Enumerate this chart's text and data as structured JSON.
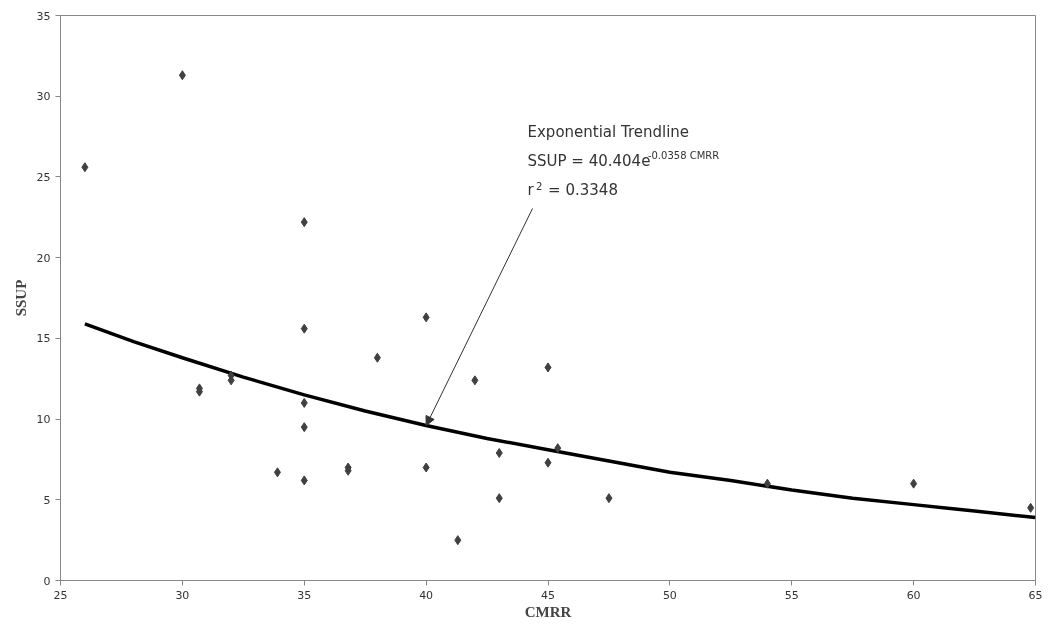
{
  "chart_data": {
    "type": "scatter",
    "xlabel": "CMRR",
    "ylabel": "SSUP",
    "xlim": [
      25,
      65
    ],
    "ylim": [
      0,
      35
    ],
    "xticks": [
      25,
      30,
      35,
      40,
      45,
      50,
      55,
      60,
      65
    ],
    "yticks": [
      0,
      5,
      10,
      15,
      20,
      25,
      30,
      35
    ],
    "grid": false,
    "marker": "diamond",
    "series": [
      {
        "color": "#404040",
        "x": [
          26,
          30,
          30.7,
          30.7,
          32,
          32,
          33.9,
          35,
          35,
          35,
          35,
          35,
          36.8,
          36.8,
          38,
          40,
          40,
          41.3,
          42,
          43,
          43,
          45,
          45,
          45.4,
          47.5,
          54,
          60,
          64.8
        ],
        "values": [
          25.6,
          31.3,
          11.9,
          11.7,
          12.7,
          12.4,
          6.7,
          22.2,
          15.6,
          11.0,
          9.5,
          6.2,
          7.0,
          6.8,
          13.8,
          16.3,
          7.0,
          2.5,
          12.4,
          7.9,
          5.1,
          13.2,
          7.3,
          8.2,
          5.1,
          6.0,
          6.0,
          4.5
        ]
      },
      {
        "type": "line",
        "color": "#000000",
        "marker": "none",
        "x": [
          26,
          28,
          30,
          32.5,
          35,
          37.5,
          40,
          42.5,
          45,
          47.5,
          50,
          52.5,
          55,
          57.5,
          60,
          62.5,
          65
        ],
        "values": [
          15.9,
          14.8,
          13.8,
          12.6,
          11.5,
          10.5,
          9.6,
          8.8,
          8.1,
          7.4,
          6.7,
          6.2,
          5.6,
          5.1,
          4.7,
          4.3,
          3.9
        ]
      }
    ],
    "annotations": [
      "Exponential Trendline",
      "SSUP = 40.404e$^{-0.0358 CMRR}$",
      {
        "text": "r$^{2}$ = 0.3348",
        "x": 40,
        "y": 9.6
      }
    ]
  }
}
